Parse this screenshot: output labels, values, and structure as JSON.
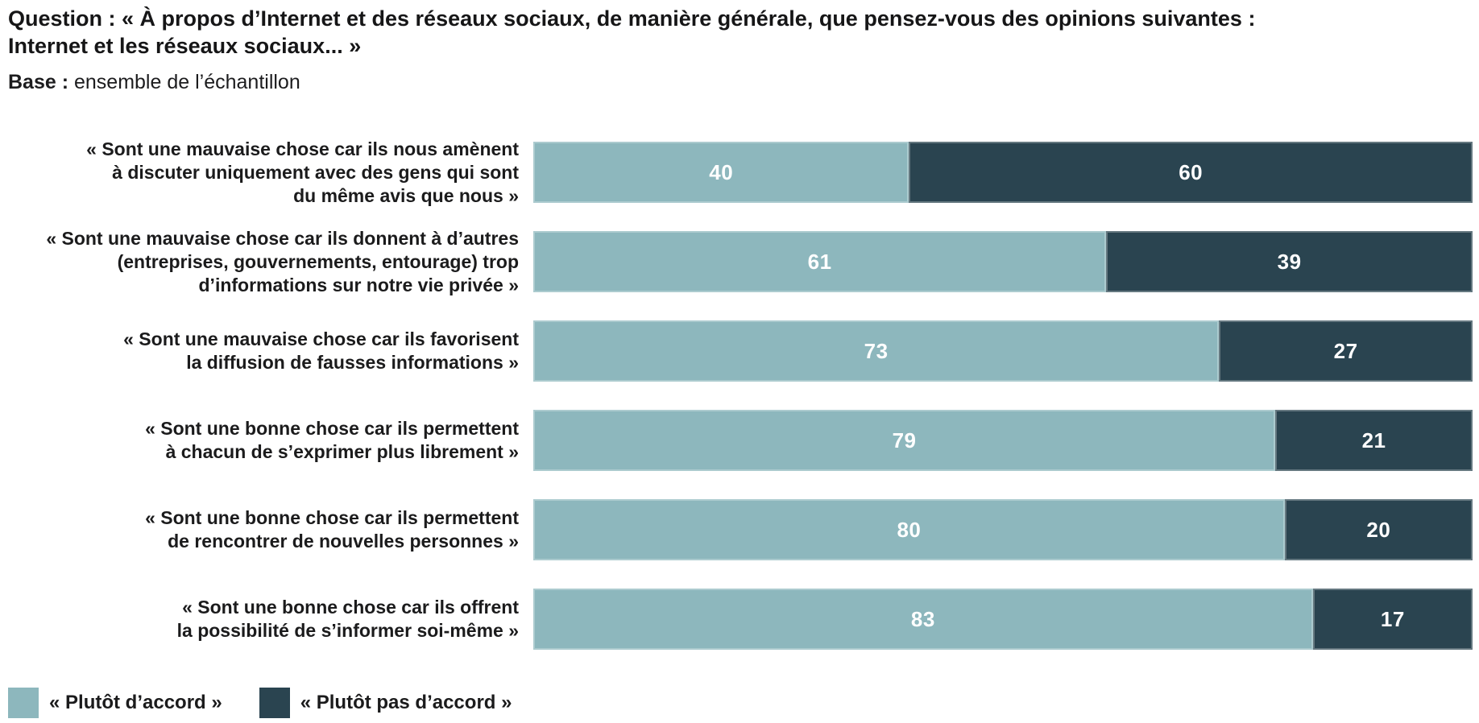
{
  "header": {
    "question_label": "Question :",
    "question_text": " « À propos d’Internet et des réseaux sociaux, de manière générale, que pensez-vous des opinions suivantes :\nInternet et les réseaux sociaux... »",
    "base_label": "Base :",
    "base_text": " ensemble de l’échantillon"
  },
  "chart_data": {
    "type": "bar",
    "orientation": "horizontal",
    "stacked": true,
    "unit": "%",
    "xlim": [
      0,
      100
    ],
    "grid": false,
    "value_labels": "inside-center",
    "legend_position": "bottom-left",
    "categories": [
      "« Sont une mauvaise chose car ils nous amènent\nà discuter uniquement avec des gens qui sont\ndu même avis que nous »",
      "« Sont une mauvaise chose car ils donnent à d’autres\n(entreprises, gouvernements, entourage) trop\nd’informations sur notre vie privée »",
      "« Sont une mauvaise chose car ils favorisent\nla diffusion de fausses informations »",
      "« Sont une bonne chose car ils permettent\nà chacun de s’exprimer plus librement »",
      "« Sont une bonne chose car ils permettent\nde rencontrer de nouvelles personnes »",
      "« Sont une bonne chose car ils offrent\nla possibilité de s’informer soi-même »"
    ],
    "series": [
      {
        "name": "« Plutôt d’accord »",
        "color": "#8db7bd",
        "values": [
          40,
          61,
          73,
          79,
          80,
          83
        ]
      },
      {
        "name": "« Plutôt pas d’accord »",
        "color": "#2a4450",
        "values": [
          60,
          39,
          27,
          21,
          20,
          17
        ]
      }
    ]
  }
}
